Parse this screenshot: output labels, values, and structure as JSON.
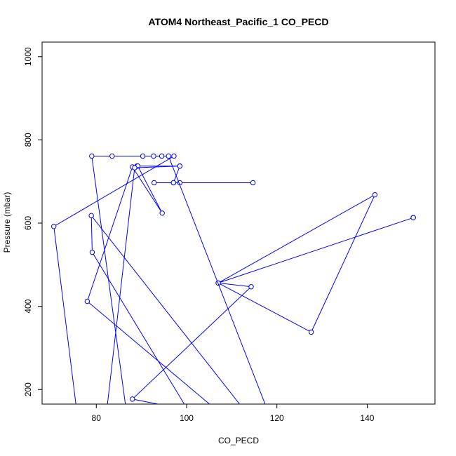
{
  "chart_data": {
    "type": "line",
    "title": "ATOM4 Northeast_Pacific_1 CO_PECD",
    "xlabel": "CO_PECD",
    "ylabel": "Pressure (mbar)",
    "xlim": [
      68,
      155
    ],
    "ylim": [
      1035,
      165
    ],
    "y_reversed": true,
    "x_ticks": [
      80,
      100,
      120,
      140
    ],
    "y_ticks": [
      200,
      400,
      600,
      800,
      1000
    ],
    "grid": false,
    "legend": "none",
    "colors": {
      "series": "#0000ff",
      "axis": "#000000",
      "background": "#ffffff"
    },
    "series": [
      {
        "points": [
          {
            "x": 102,
            "y": 120
          },
          {
            "x": 79.1,
            "y": 530
          },
          {
            "x": 78.9,
            "y": 618
          },
          {
            "x": 115,
            "y": 120
          },
          {
            "x": 88,
            "y": 177
          },
          {
            "x": 114.3,
            "y": 447
          },
          {
            "x": 107,
            "y": 456
          },
          {
            "x": 127.6,
            "y": 338
          },
          {
            "x": 141.7,
            "y": 668
          },
          {
            "x": 107,
            "y": 456
          },
          {
            "x": 150.2,
            "y": 613
          },
          {
            "x": 150.2,
            "y": 613
          },
          {
            "x": 150.2,
            "y": 613
          }
        ]
      },
      {
        "points": [
          {
            "x": 92.8,
            "y": 697
          },
          {
            "x": 97.1,
            "y": 697
          },
          {
            "x": 98.5,
            "y": 697
          },
          {
            "x": 114.7,
            "y": 697
          },
          {
            "x": 97.1,
            "y": 697
          },
          {
            "x": 98.5,
            "y": 737
          },
          {
            "x": 89.0,
            "y": 737
          },
          {
            "x": 89.2,
            "y": 737
          },
          {
            "x": 94.6,
            "y": 624
          },
          {
            "x": 88.0,
            "y": 735
          },
          {
            "x": 78.0,
            "y": 412
          },
          {
            "x": 110,
            "y": 120
          },
          {
            "x": 86,
            "y": 120
          }
        ]
      },
      {
        "points": [
          {
            "x": 76,
            "y": 120
          },
          {
            "x": 70.6,
            "y": 592
          },
          {
            "x": 97.2,
            "y": 761
          },
          {
            "x": 94.5,
            "y": 761
          },
          {
            "x": 92.7,
            "y": 761
          },
          {
            "x": 90.3,
            "y": 761
          },
          {
            "x": 83.5,
            "y": 761
          },
          {
            "x": 79.0,
            "y": 761
          },
          {
            "x": 87,
            "y": 120
          },
          {
            "x": 87,
            "y": 120
          }
        ]
      },
      {
        "points": [
          {
            "x": 96,
            "y": 761
          },
          {
            "x": 119,
            "y": 120
          }
        ]
      },
      {
        "points": [
          {
            "x": 82,
            "y": 120
          },
          {
            "x": 88.5,
            "y": 733
          },
          {
            "x": 98.5,
            "y": 737
          }
        ]
      }
    ]
  }
}
